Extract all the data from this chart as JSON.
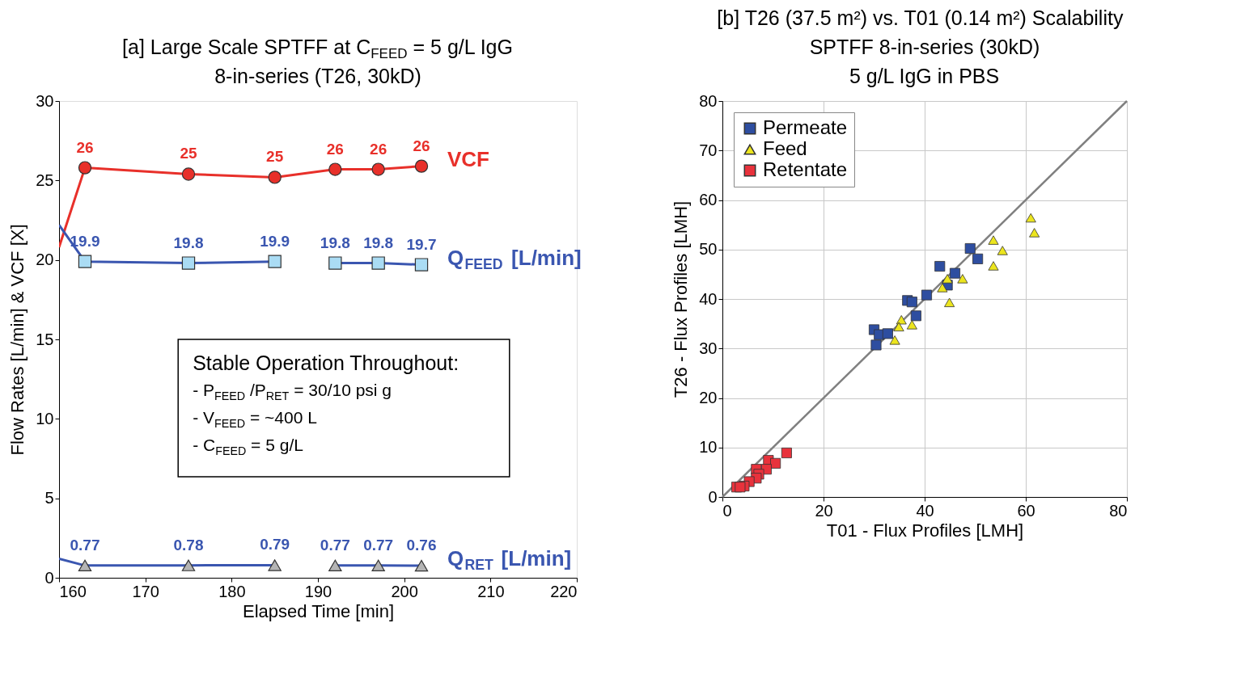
{
  "chart_data": [
    {
      "type": "line",
      "title": [
        "[a] Large Scale SPTFF at C$_{FEED}$ = 5 g/L IgG",
        "8-in-series (T26, 30kD)"
      ],
      "xlabel": "Elapsed Time [min]",
      "ylabel": "Flow Rates [L/min] & VCF [X]",
      "x": [
        160,
        163,
        175,
        185,
        192,
        197,
        202
      ],
      "xlim": [
        160,
        220
      ],
      "xticks": [
        160,
        170,
        180,
        190,
        200,
        210,
        220
      ],
      "ylim": [
        0,
        30
      ],
      "yticks": [
        0,
        5,
        10,
        15,
        20,
        25,
        30
      ],
      "grid": false,
      "legend": false,
      "series": [
        {
          "name": "VCF",
          "color": "#e8302a",
          "marker": "circle",
          "values": [
            20.8,
            25.8,
            25.4,
            25.2,
            25.7,
            25.7,
            25.9
          ],
          "value_labels": [
            null,
            "26",
            "25",
            "25",
            "26",
            "26",
            "26"
          ]
        },
        {
          "name": "Q$_{FEED}$ [L/min]",
          "color": "#3a56b0",
          "marker": "square",
          "x": [
            160,
            163,
            175,
            185,
            188,
            192,
            197,
            202
          ],
          "values": [
            22.2,
            19.9,
            19.8,
            19.9,
            null,
            19.8,
            19.8,
            19.7
          ],
          "value_labels": [
            null,
            "19.9",
            "19.8",
            "19.9",
            null,
            "19.8",
            "19.8",
            "19.7"
          ],
          "colors": [
            null,
            "#aadcf4",
            "#aadcf4",
            "#aadcf4",
            null,
            "#aadcf4",
            "#aadcf4",
            "#aadcf4"
          ]
        },
        {
          "name": "Q$_{RET}$ [L/min]",
          "color": "#3a56b0",
          "marker": "triangle",
          "x": [
            160,
            163,
            175,
            185,
            188,
            192,
            197,
            202
          ],
          "values": [
            1.2,
            0.77,
            0.78,
            0.79,
            null,
            0.77,
            0.77,
            0.76
          ],
          "value_labels": [
            null,
            "0.77",
            "0.78",
            "0.79",
            null,
            "0.77",
            "0.77",
            "0.76"
          ],
          "colors": [
            null,
            "#b4b4b4",
            "#b4b4b4",
            "#b4b4b4",
            null,
            "#b4b4b4",
            "#b4b4b4",
            "#b4b4b4"
          ]
        }
      ],
      "annotations": [
        "Stable Operation Throughout:",
        "- P$_{FEED}$ /P$_{RET}$ = 30/10 psi g",
        "- V$_{FEED}$ = ~400 L",
        "- C$_{FEED}$ = 5 g/L"
      ]
    },
    {
      "type": "scatter",
      "title": [
        "[b] T26 (37.5 m²) vs. T01 (0.14 m²) Scalability",
        "SPTFF 8-in-series (30kD)",
        "5 g/L IgG in PBS"
      ],
      "xlabel": "T01 - Flux Profiles [LMH]",
      "ylabel": "T26 - Flux Profiles [LMH]",
      "xlim": [
        0,
        80
      ],
      "xticks": [
        0,
        20,
        40,
        60,
        80
      ],
      "ylim": [
        0,
        80
      ],
      "yticks": [
        0,
        10,
        20,
        30,
        40,
        50,
        60,
        70,
        80
      ],
      "grid": true,
      "legend": "top left",
      "series": [
        {
          "name": "Permeate",
          "color": "#2e4ea0",
          "marker": "square",
          "x": [
            49.0,
            50.5,
            43.0,
            46.0,
            44.5,
            40.4,
            36.6,
            37.5,
            38.3,
            30.0,
            31.0,
            32.7,
            30.4
          ],
          "values": [
            50.2,
            48.1,
            46.6,
            45.2,
            42.8,
            40.8,
            39.7,
            39.4,
            36.6,
            33.8,
            32.8,
            33.0,
            30.7
          ]
        },
        {
          "name": "Feed",
          "color": "#ece51e",
          "marker": "triangle",
          "x": [
            61.0,
            61.7,
            53.6,
            55.4,
            53.6,
            44.5,
            47.5,
            43.5,
            44.9,
            35.4,
            37.5,
            34.9,
            34.1
          ],
          "values": [
            56.4,
            53.4,
            51.9,
            49.8,
            46.7,
            44.1,
            44.1,
            42.3,
            39.3,
            35.8,
            34.8,
            34.4,
            31.7
          ]
        },
        {
          "name": "Retentate",
          "color": "#e8323c",
          "marker": "square",
          "x": [
            12.7,
            9.1,
            10.5,
            8.7,
            6.7,
            7.2,
            6.7,
            5.3,
            4.3,
            2.8,
            3.5
          ],
          "values": [
            8.9,
            7.4,
            6.8,
            5.6,
            5.6,
            4.6,
            3.8,
            3.1,
            2.2,
            2.0,
            2.0
          ]
        },
        {
          "type": "line",
          "color": "#808080",
          "x": [
            0,
            80
          ],
          "values": [
            0,
            80
          ]
        }
      ]
    }
  ]
}
